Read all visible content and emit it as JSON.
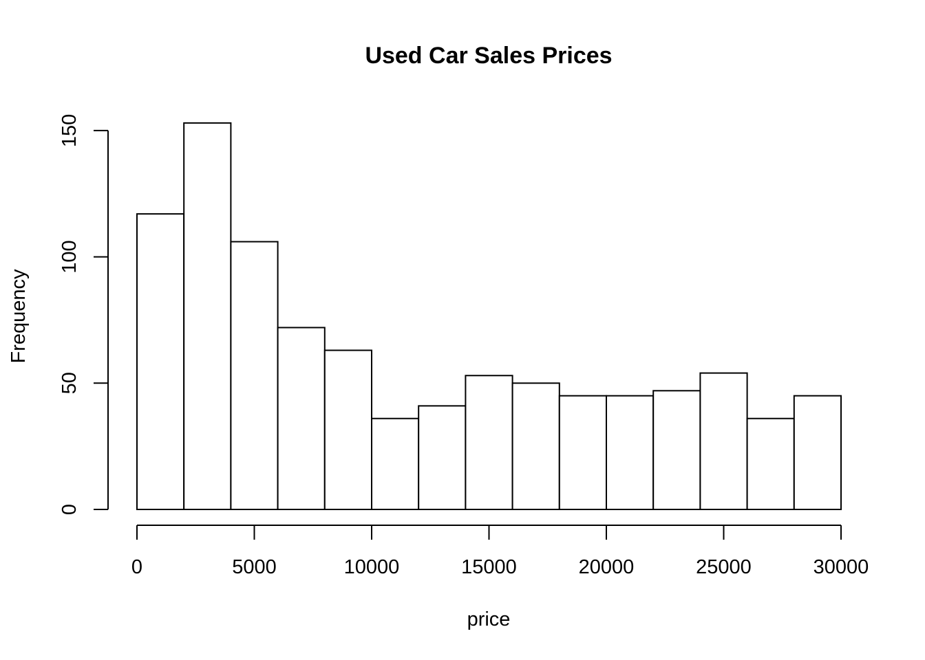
{
  "chart_data": {
    "type": "bar",
    "subtype": "histogram",
    "title": "Used Car Sales Prices",
    "xlabel": "price",
    "ylabel": "Frequency",
    "bin_edges": [
      0,
      2000,
      4000,
      6000,
      8000,
      10000,
      12000,
      14000,
      16000,
      18000,
      20000,
      22000,
      24000,
      26000,
      28000,
      30000
    ],
    "values": [
      117,
      153,
      106,
      72,
      63,
      36,
      41,
      53,
      50,
      45,
      45,
      47,
      54,
      36,
      45
    ],
    "xlim": [
      0,
      30000
    ],
    "ylim": [
      0,
      153
    ],
    "x_ticks": [
      0,
      5000,
      10000,
      15000,
      20000,
      25000,
      30000
    ],
    "x_tick_labels": [
      "0",
      "5000",
      "10000",
      "15000",
      "20000",
      "25000",
      "30000"
    ],
    "y_ticks": [
      0,
      50,
      100,
      150
    ],
    "y_tick_labels": [
      "0",
      "50",
      "100",
      "150"
    ],
    "grid": false,
    "legend": "none",
    "colors": {
      "bar_fill": "#ffffff",
      "bar_stroke": "#000000",
      "background": "#ffffff"
    }
  }
}
